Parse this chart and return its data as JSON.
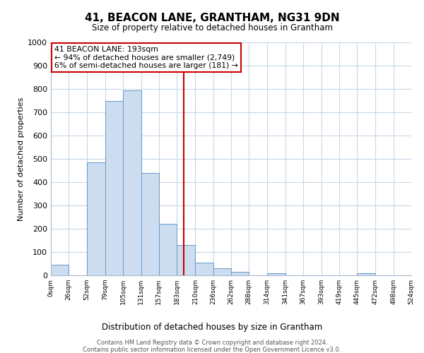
{
  "title": "41, BEACON LANE, GRANTHAM, NG31 9DN",
  "subtitle": "Size of property relative to detached houses in Grantham",
  "xlabel": "Distribution of detached houses by size in Grantham",
  "ylabel": "Number of detached properties",
  "bar_edges": [
    0,
    26,
    52,
    79,
    105,
    131,
    157,
    183,
    210,
    236,
    262,
    288,
    314,
    341,
    367,
    393,
    419,
    445,
    472,
    498,
    524
  ],
  "bar_heights": [
    45,
    0,
    485,
    750,
    795,
    440,
    220,
    130,
    55,
    30,
    15,
    0,
    10,
    0,
    0,
    0,
    0,
    8,
    0,
    0
  ],
  "bar_color": "#ccddf0",
  "bar_edge_color": "#6699cc",
  "property_line_x": 193,
  "property_label": "41 BEACON LANE: 193sqm",
  "annotation_line1": "← 94% of detached houses are smaller (2,749)",
  "annotation_line2": "6% of semi-detached houses are larger (181) →",
  "annotation_box_color": "#ffffff",
  "annotation_box_edge": "#cc0000",
  "vline_color": "#cc0000",
  "ylim": [
    0,
    1000
  ],
  "yticks": [
    0,
    100,
    200,
    300,
    400,
    500,
    600,
    700,
    800,
    900,
    1000
  ],
  "tick_labels": [
    "0sqm",
    "26sqm",
    "52sqm",
    "79sqm",
    "105sqm",
    "131sqm",
    "157sqm",
    "183sqm",
    "210sqm",
    "236sqm",
    "262sqm",
    "288sqm",
    "314sqm",
    "341sqm",
    "367sqm",
    "393sqm",
    "419sqm",
    "445sqm",
    "472sqm",
    "498sqm",
    "524sqm"
  ],
  "footer_line1": "Contains HM Land Registry data © Crown copyright and database right 2024.",
  "footer_line2": "Contains public sector information licensed under the Open Government Licence v3.0.",
  "bg_color": "#ffffff",
  "grid_color": "#c8d8e8"
}
